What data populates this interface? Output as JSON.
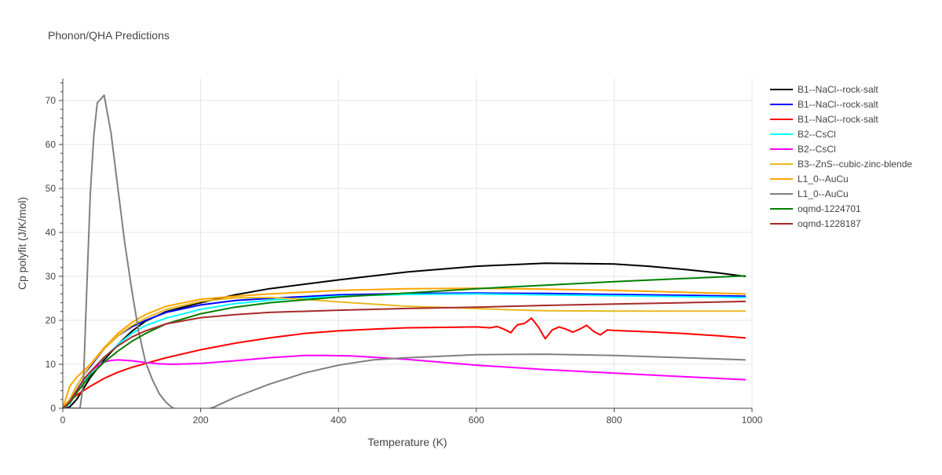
{
  "chart_data": {
    "type": "line",
    "title": "Phonon/QHA Predictions",
    "xlabel": "Temperature (K)",
    "ylabel": "Cp polyfit (J/K/mol)",
    "xlim": [
      0,
      1000
    ],
    "ylim": [
      0,
      75
    ],
    "x_ticks": [
      0,
      200,
      400,
      600,
      800,
      1000
    ],
    "y_ticks": [
      0,
      10,
      20,
      30,
      40,
      50,
      60,
      70
    ],
    "grid": true,
    "legend_position": "right",
    "series": [
      {
        "name": "B1--NaCl--rock-salt",
        "color": "#000000",
        "x": [
          0,
          10,
          20,
          30,
          40,
          60,
          80,
          100,
          120,
          150,
          200,
          250,
          300,
          400,
          500,
          600,
          700,
          800,
          850,
          900,
          950,
          990
        ],
        "y": [
          0,
          0.3,
          2,
          4.5,
          7,
          11,
          14.5,
          17.5,
          19.8,
          22,
          24,
          25.8,
          27.2,
          29.2,
          31,
          32.3,
          33,
          32.8,
          32.3,
          31.6,
          30.8,
          30
        ]
      },
      {
        "name": "B1--NaCl--rock-salt",
        "color": "#0000ff",
        "x": [
          0,
          10,
          20,
          30,
          40,
          60,
          80,
          100,
          120,
          150,
          200,
          250,
          300,
          400,
          500,
          600,
          700,
          800,
          900,
          990
        ],
        "y": [
          0,
          2,
          5,
          7.5,
          9.5,
          13.5,
          16.5,
          18.5,
          20,
          21.8,
          23.5,
          24.5,
          25,
          25.8,
          26.1,
          26.2,
          26.1,
          25.9,
          25.7,
          25.5
        ]
      },
      {
        "name": "B1--NaCl--rock-salt",
        "color": "#ff0000",
        "x": [
          0,
          10,
          20,
          40,
          60,
          80,
          100,
          150,
          200,
          250,
          300,
          350,
          400,
          450,
          500,
          550,
          600,
          620,
          630,
          640,
          650,
          655,
          660,
          670,
          680,
          690,
          700,
          710,
          720,
          730,
          740,
          750,
          760,
          770,
          780,
          790,
          800,
          850,
          900,
          950,
          990
        ],
        "y": [
          0,
          1.5,
          3,
          5,
          6.8,
          8.2,
          9.3,
          11.5,
          13.3,
          14.8,
          16,
          17,
          17.6,
          18,
          18.3,
          18.4,
          18.5,
          18.3,
          18.6,
          18,
          17.2,
          18.2,
          19,
          19.3,
          20.5,
          18.5,
          15.8,
          17.8,
          18.5,
          18,
          17.3,
          18,
          18.9,
          17.5,
          16.7,
          17.8,
          17.7,
          17.4,
          17,
          16.5,
          16
        ]
      },
      {
        "name": "B2--CsCl",
        "color": "#00ffff",
        "x": [
          0,
          10,
          20,
          30,
          40,
          60,
          80,
          100,
          120,
          150,
          200,
          250,
          300,
          400,
          500,
          600,
          700,
          800,
          900,
          990
        ],
        "y": [
          0,
          1,
          3.5,
          6,
          8,
          11.5,
          14.5,
          17,
          18.8,
          20.5,
          22.5,
          23.8,
          24.6,
          25.5,
          25.9,
          26,
          25.8,
          25.6,
          25.4,
          25.2
        ]
      },
      {
        "name": "B2--CsCl",
        "color": "#ff00ff",
        "x": [
          0,
          10,
          20,
          30,
          40,
          50,
          60,
          70,
          80,
          100,
          120,
          140,
          160,
          200,
          250,
          300,
          350,
          380,
          420,
          500,
          600,
          700,
          800,
          900,
          990
        ],
        "y": [
          0,
          1.5,
          4,
          6.5,
          8.3,
          9.6,
          10.5,
          10.9,
          11,
          10.8,
          10.4,
          10.1,
          10,
          10.2,
          10.8,
          11.5,
          12,
          12,
          11.9,
          11.1,
          9.8,
          8.8,
          8,
          7.2,
          6.5
        ]
      },
      {
        "name": "B3--ZnS--cubic-zinc-blende",
        "color": "#e8b820",
        "x": [
          0,
          10,
          20,
          30,
          40,
          60,
          80,
          100,
          120,
          150,
          200,
          250,
          300,
          350,
          400,
          500,
          600,
          650,
          700,
          800,
          900,
          990
        ],
        "y": [
          0,
          2,
          5,
          7.5,
          9.8,
          13.5,
          16.5,
          18.8,
          20.5,
          22.5,
          24.3,
          25.1,
          25.2,
          24.8,
          24.2,
          23.2,
          22.7,
          22.4,
          22.2,
          22.1,
          22.1,
          22.1
        ]
      },
      {
        "name": "L1_0--AuCu",
        "color": "#ffa500",
        "x": [
          0,
          10,
          20,
          30,
          40,
          60,
          80,
          100,
          120,
          150,
          200,
          250,
          300,
          400,
          500,
          600,
          700,
          800,
          900,
          990
        ],
        "y": [
          0,
          5,
          7,
          8.5,
          10,
          13.8,
          17,
          19.5,
          21.3,
          23.2,
          24.8,
          25.5,
          26,
          26.8,
          27.2,
          27.3,
          27.1,
          26.8,
          26.4,
          26
        ]
      },
      {
        "name": "L1_0--AuCu",
        "color": "#808080",
        "x": [
          0,
          20,
          25,
          30,
          35,
          40,
          45,
          50,
          55,
          60,
          70,
          80,
          90,
          100,
          110,
          120,
          130,
          140,
          150,
          160,
          170,
          180,
          190,
          200,
          210,
          220,
          250,
          300,
          350,
          400,
          450,
          500,
          600,
          700,
          800,
          900,
          990
        ],
        "y": [
          0,
          0,
          0,
          6,
          28,
          49,
          62,
          69.5,
          70.3,
          71.2,
          62.5,
          50,
          37.5,
          27,
          17.5,
          10.5,
          6.5,
          3.3,
          1.3,
          0,
          -0.2,
          -0.4,
          -0.4,
          -0.3,
          -0.2,
          0.3,
          2.5,
          5.5,
          8,
          9.8,
          11,
          11.5,
          12.2,
          12.3,
          12,
          11.5,
          11
        ]
      },
      {
        "name": "oqmd-1224701",
        "color": "#008000",
        "x": [
          0,
          10,
          20,
          30,
          40,
          60,
          80,
          100,
          120,
          150,
          200,
          250,
          300,
          400,
          500,
          600,
          700,
          800,
          900,
          990
        ],
        "y": [
          0,
          1.2,
          3.5,
          5.5,
          7.5,
          10.5,
          13,
          15.2,
          17,
          19.2,
          21.5,
          23,
          24,
          25.3,
          26.2,
          27.2,
          28,
          28.8,
          29.5,
          30.1
        ]
      },
      {
        "name": "oqmd-1228187",
        "color": "#a52a2a",
        "x": [
          0,
          10,
          20,
          30,
          40,
          60,
          80,
          100,
          120,
          150,
          200,
          250,
          300,
          400,
          500,
          600,
          700,
          800,
          900,
          990
        ],
        "y": [
          0,
          1.5,
          4,
          6.5,
          8.3,
          11.6,
          14.2,
          16.2,
          17.6,
          19.2,
          20.6,
          21.3,
          21.8,
          22.3,
          22.7,
          23,
          23.4,
          23.7,
          24,
          24.3
        ]
      }
    ]
  }
}
